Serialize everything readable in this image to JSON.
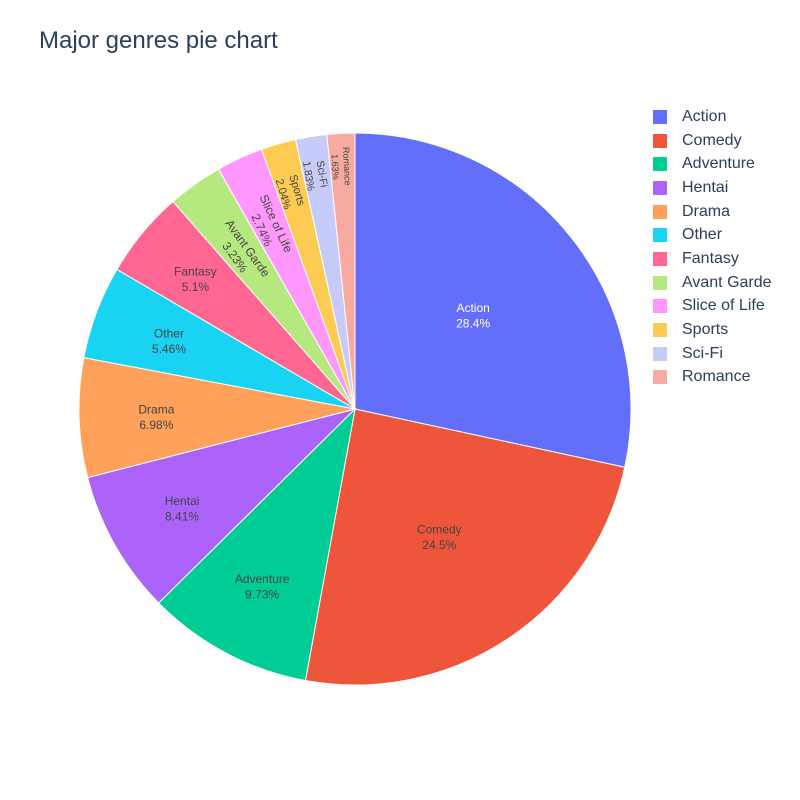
{
  "chart_data": {
    "type": "pie",
    "title": "Major genres pie chart",
    "slices": [
      {
        "label": "Action",
        "value": 28.4,
        "text": "28.4%",
        "color": "#636efa"
      },
      {
        "label": "Comedy",
        "value": 24.5,
        "text": "24.5%",
        "color": "#EF553B"
      },
      {
        "label": "Adventure",
        "value": 9.73,
        "text": "9.73%",
        "color": "#00cc96"
      },
      {
        "label": "Hentai",
        "value": 8.41,
        "text": "8.41%",
        "color": "#ab63fa"
      },
      {
        "label": "Drama",
        "value": 6.98,
        "text": "6.98%",
        "color": "#FFA15A"
      },
      {
        "label": "Other",
        "value": 5.46,
        "text": "5.46%",
        "color": "#19d3f3"
      },
      {
        "label": "Fantasy",
        "value": 5.1,
        "text": "5.1%",
        "color": "#FF6692"
      },
      {
        "label": "Avant Garde",
        "value": 3.23,
        "text": "3.23%",
        "color": "#B6E880"
      },
      {
        "label": "Slice of Life",
        "value": 2.74,
        "text": "2.74%",
        "color": "#FF97FF"
      },
      {
        "label": "Sports",
        "value": 2.04,
        "text": "2.04%",
        "color": "#FECB52"
      },
      {
        "label": "Sci-Fi",
        "value": 1.83,
        "text": "1.83%",
        "color": "#c6cbfa"
      },
      {
        "label": "Romance",
        "value": 1.63,
        "text": "1.63%",
        "color": "#f6aaa0"
      }
    ],
    "legend_position": "right",
    "direction": "clockwise",
    "start": "top"
  }
}
